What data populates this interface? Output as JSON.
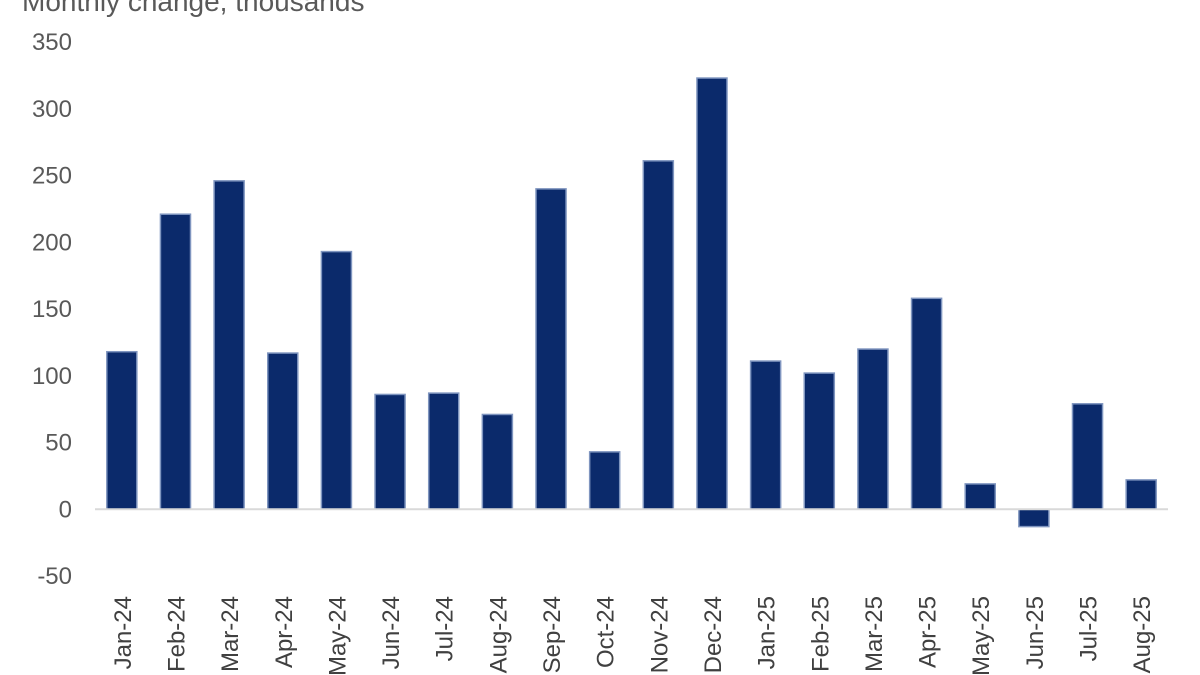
{
  "chart_data": {
    "type": "bar",
    "title": "Monthly change, thousands",
    "categories": [
      "Jan-24",
      "Feb-24",
      "Mar-24",
      "Apr-24",
      "May-24",
      "Jun-24",
      "Jul-24",
      "Aug-24",
      "Sep-24",
      "Oct-24",
      "Nov-24",
      "Dec-24",
      "Jan-25",
      "Feb-25",
      "Mar-25",
      "Apr-25",
      "May-25",
      "Jun-25",
      "Jul-25",
      "Aug-25"
    ],
    "values": [
      118,
      221,
      246,
      117,
      193,
      86,
      87,
      71,
      240,
      43,
      261,
      323,
      111,
      102,
      120,
      158,
      19,
      -13,
      79,
      22
    ],
    "ylim": [
      -50,
      350
    ],
    "yticks": [
      "350",
      "300",
      "250",
      "200",
      "150",
      "100",
      "50",
      "0",
      "-50"
    ],
    "grid": false,
    "bar_color": "#0b2a6b",
    "axis_color": "#d9d9d9"
  }
}
